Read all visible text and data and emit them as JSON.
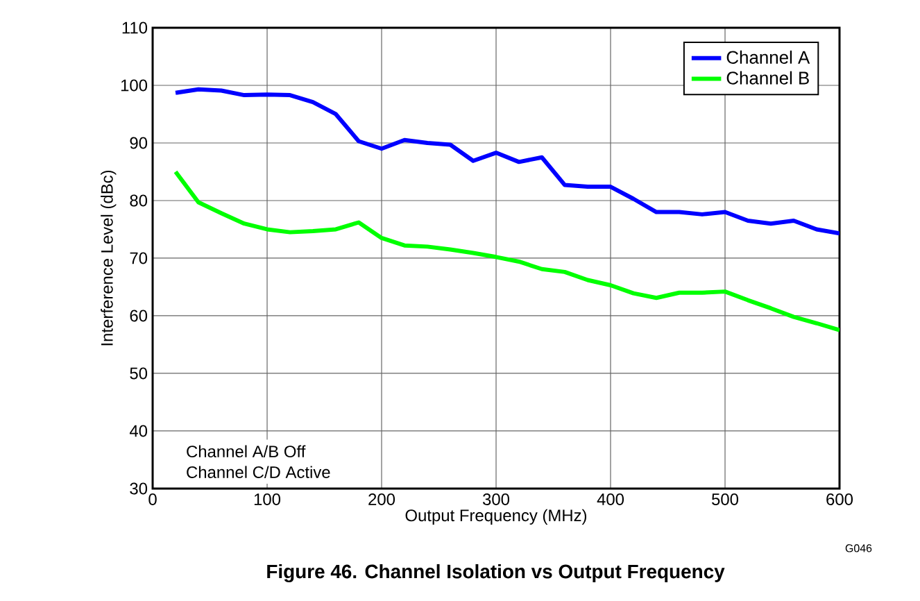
{
  "chart_data": {
    "type": "line",
    "title": "Figure 46. Channel Isolation vs Output Frequency",
    "xlabel": "Output Frequency (MHz)",
    "ylabel": "Interference Level (dBc)",
    "x": [
      20,
      40,
      60,
      80,
      100,
      120,
      140,
      160,
      180,
      200,
      220,
      240,
      260,
      280,
      300,
      320,
      340,
      360,
      380,
      400,
      420,
      440,
      460,
      480,
      500,
      520,
      540,
      560,
      580,
      600
    ],
    "series": [
      {
        "name": "Channel A",
        "color": "#0000ff",
        "values": [
          98.7,
          99.3,
          99.1,
          98.3,
          98.4,
          98.3,
          97.1,
          95,
          90.3,
          89,
          90.5,
          90,
          89.7,
          86.9,
          88.3,
          86.7,
          87.5,
          82.7,
          82.4,
          82.4,
          80.3,
          78,
          78,
          77.6,
          78,
          76.5,
          76,
          76.5,
          75,
          74.3
        ]
      },
      {
        "name": "Channel B",
        "color": "#00ff00",
        "values": [
          85,
          79.7,
          77.8,
          76,
          75,
          74.5,
          74.7,
          75,
          76.2,
          73.5,
          72.2,
          72,
          71.5,
          70.9,
          70.2,
          69.4,
          68.1,
          67.6,
          66.2,
          65.3,
          63.9,
          63.1,
          64,
          64,
          64.2,
          62.7,
          61.3,
          59.8,
          58.7,
          57.5
        ]
      }
    ],
    "xlim": [
      0,
      600
    ],
    "xticks": [
      0,
      100,
      200,
      300,
      400,
      500,
      600
    ],
    "ylim": [
      30,
      110
    ],
    "yticks": [
      30,
      40,
      50,
      60,
      70,
      80,
      90,
      100,
      110
    ],
    "grid": true,
    "legend": "top right",
    "line_style": "solid",
    "marker": "none",
    "annotations": [
      "Channel A/B Off",
      "Channel C/D Active",
      "G046"
    ]
  }
}
